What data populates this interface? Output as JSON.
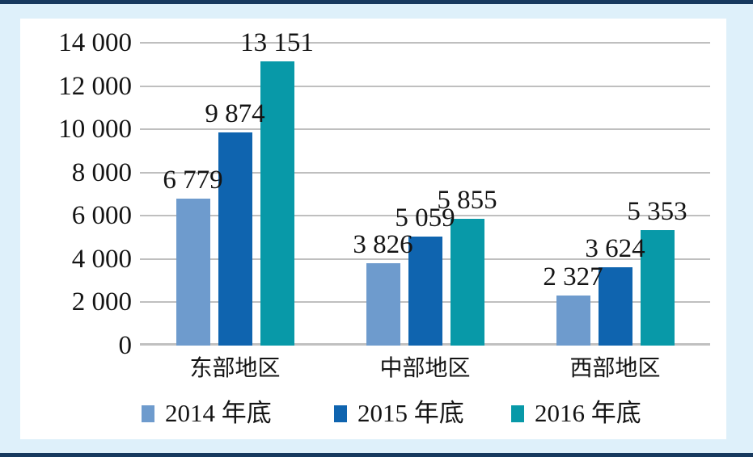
{
  "chart_data": {
    "type": "bar",
    "title": "",
    "xlabel": "",
    "ylabel": "",
    "ylim": [
      0,
      14000
    ],
    "grid": true,
    "legend_position": "bottom",
    "categories": [
      "东部地区",
      "中部地区",
      "西部地区"
    ],
    "series": [
      {
        "name": "2014 年底",
        "color": "#6e9bcd",
        "values": [
          6779,
          3826,
          2327
        ],
        "labels": [
          "6 779",
          "3 826",
          "2 327"
        ]
      },
      {
        "name": "2015 年底",
        "color": "#0f64af",
        "values": [
          9874,
          5059,
          3624
        ],
        "labels": [
          "9 874",
          "5 059",
          "3 624"
        ]
      },
      {
        "name": "2016 年底",
        "color": "#0899a8",
        "values": [
          13151,
          5855,
          5353
        ],
        "labels": [
          "13 151",
          "5 855",
          "5 353"
        ]
      }
    ],
    "y_ticks": [
      {
        "value": 0,
        "label": "0"
      },
      {
        "value": 2000,
        "label": "2 000"
      },
      {
        "value": 4000,
        "label": "4 000"
      },
      {
        "value": 6000,
        "label": "6 000"
      },
      {
        "value": 8000,
        "label": "8 000"
      },
      {
        "value": 10000,
        "label": "10 000"
      },
      {
        "value": 12000,
        "label": "12 000"
      },
      {
        "value": 14000,
        "label": "14 000"
      }
    ]
  },
  "colors": {
    "card_background": "#def0fa",
    "card_border": "#17395e",
    "panel_background": "#ffffff",
    "gridline": "#bfbfbf",
    "text": "#141414"
  }
}
